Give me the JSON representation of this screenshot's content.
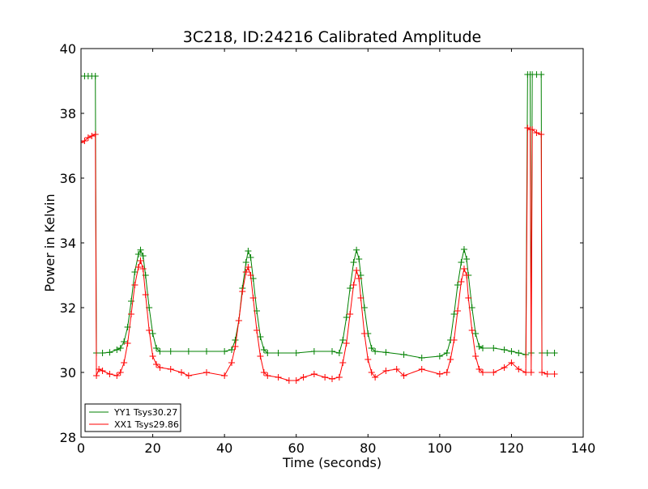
{
  "chart_data": {
    "type": "line",
    "title": "3C218, ID:24216 Calibrated Amplitude",
    "xlabel": "Time (seconds)",
    "ylabel": "Power in Kelvin",
    "xlim": [
      0,
      140
    ],
    "ylim": [
      28,
      40
    ],
    "xticks": [
      0,
      20,
      40,
      60,
      80,
      100,
      120,
      140
    ],
    "yticks": [
      28,
      30,
      32,
      34,
      36,
      38,
      40
    ],
    "xtick_labels": [
      "0",
      "20",
      "40",
      "60",
      "80",
      "100",
      "120",
      "140"
    ],
    "ytick_labels": [
      "28",
      "30",
      "32",
      "34",
      "36",
      "38",
      "40"
    ],
    "grid": false,
    "legend_position": "bottom-left",
    "marker": "+",
    "series": [
      {
        "name": "YY1 Tsys30.27",
        "color": "#008000",
        "points": [
          [
            0,
            39.15
          ],
          [
            1,
            39.15
          ],
          [
            2,
            39.15
          ],
          [
            3,
            39.15
          ],
          [
            4,
            39.15
          ],
          [
            4.3,
            30.6
          ],
          [
            6,
            30.6
          ],
          [
            8,
            30.62
          ],
          [
            10,
            30.7
          ],
          [
            11,
            30.75
          ],
          [
            12,
            30.95
          ],
          [
            13,
            31.4
          ],
          [
            14,
            32.2
          ],
          [
            15,
            33.1
          ],
          [
            16,
            33.65
          ],
          [
            16.6,
            33.78
          ],
          [
            17.3,
            33.6
          ],
          [
            18,
            33.0
          ],
          [
            19,
            32.0
          ],
          [
            20,
            31.2
          ],
          [
            21,
            30.75
          ],
          [
            22,
            30.65
          ],
          [
            25,
            30.65
          ],
          [
            30,
            30.65
          ],
          [
            35,
            30.65
          ],
          [
            40,
            30.65
          ],
          [
            42,
            30.7
          ],
          [
            43,
            31.0
          ],
          [
            44,
            31.6
          ],
          [
            45,
            32.6
          ],
          [
            46,
            33.4
          ],
          [
            46.6,
            33.75
          ],
          [
            47.3,
            33.55
          ],
          [
            48,
            32.9
          ],
          [
            49,
            31.9
          ],
          [
            50,
            31.1
          ],
          [
            51,
            30.7
          ],
          [
            52,
            30.6
          ],
          [
            55,
            30.6
          ],
          [
            60,
            30.6
          ],
          [
            65,
            30.65
          ],
          [
            70,
            30.65
          ],
          [
            72,
            30.6
          ],
          [
            73,
            31.0
          ],
          [
            74,
            31.7
          ],
          [
            75,
            32.6
          ],
          [
            76,
            33.4
          ],
          [
            76.8,
            33.78
          ],
          [
            77.5,
            33.5
          ],
          [
            78,
            33.0
          ],
          [
            79,
            32.0
          ],
          [
            80,
            31.2
          ],
          [
            81,
            30.75
          ],
          [
            82,
            30.65
          ],
          [
            85,
            30.62
          ],
          [
            90,
            30.55
          ],
          [
            95,
            30.45
          ],
          [
            100,
            30.5
          ],
          [
            102,
            30.6
          ],
          [
            103,
            31.0
          ],
          [
            104,
            31.8
          ],
          [
            105,
            32.7
          ],
          [
            106,
            33.4
          ],
          [
            106.8,
            33.8
          ],
          [
            107.5,
            33.5
          ],
          [
            108,
            33.0
          ],
          [
            109,
            32.0
          ],
          [
            110,
            31.2
          ],
          [
            111,
            30.8
          ],
          [
            112,
            30.75
          ],
          [
            115,
            30.75
          ],
          [
            118,
            30.7
          ],
          [
            120,
            30.65
          ],
          [
            122,
            30.6
          ],
          [
            124,
            30.55
          ],
          [
            124.5,
            39.2
          ],
          [
            125.2,
            39.2
          ],
          [
            125.5,
            30.6
          ],
          [
            125.8,
            39.2
          ],
          [
            127,
            39.2
          ],
          [
            128.3,
            39.2
          ],
          [
            128.5,
            30.6
          ],
          [
            130,
            30.6
          ],
          [
            132,
            30.6
          ]
        ]
      },
      {
        "name": "XX1 Tsys29.86",
        "color": "#ff0000",
        "points": [
          [
            0,
            37.1
          ],
          [
            1,
            37.15
          ],
          [
            2,
            37.25
          ],
          [
            3,
            37.3
          ],
          [
            4,
            37.35
          ],
          [
            4.3,
            29.9
          ],
          [
            5,
            30.1
          ],
          [
            6,
            30.05
          ],
          [
            8,
            29.95
          ],
          [
            10,
            29.9
          ],
          [
            11,
            30.0
          ],
          [
            12,
            30.3
          ],
          [
            13,
            30.9
          ],
          [
            14,
            31.8
          ],
          [
            15,
            32.7
          ],
          [
            16,
            33.25
          ],
          [
            16.6,
            33.45
          ],
          [
            17.3,
            33.2
          ],
          [
            18,
            32.4
          ],
          [
            19,
            31.3
          ],
          [
            20,
            30.5
          ],
          [
            21,
            30.25
          ],
          [
            22,
            30.15
          ],
          [
            25,
            30.1
          ],
          [
            28,
            30.0
          ],
          [
            30,
            29.9
          ],
          [
            35,
            30.0
          ],
          [
            40,
            29.9
          ],
          [
            42,
            30.3
          ],
          [
            43,
            30.8
          ],
          [
            44,
            31.6
          ],
          [
            45,
            32.5
          ],
          [
            46,
            33.1
          ],
          [
            46.6,
            33.25
          ],
          [
            47.3,
            33.0
          ],
          [
            48,
            32.3
          ],
          [
            49,
            31.3
          ],
          [
            50,
            30.5
          ],
          [
            51,
            30.0
          ],
          [
            52,
            29.9
          ],
          [
            55,
            29.85
          ],
          [
            58,
            29.75
          ],
          [
            60,
            29.75
          ],
          [
            62,
            29.85
          ],
          [
            65,
            29.95
          ],
          [
            68,
            29.85
          ],
          [
            70,
            29.8
          ],
          [
            72,
            29.85
          ],
          [
            73,
            30.3
          ],
          [
            74,
            30.9
          ],
          [
            75,
            31.8
          ],
          [
            76,
            32.7
          ],
          [
            76.8,
            33.15
          ],
          [
            77.5,
            32.9
          ],
          [
            78,
            32.3
          ],
          [
            79,
            31.2
          ],
          [
            80,
            30.4
          ],
          [
            81,
            30.0
          ],
          [
            82,
            29.85
          ],
          [
            85,
            30.05
          ],
          [
            88,
            30.1
          ],
          [
            90,
            29.9
          ],
          [
            95,
            30.1
          ],
          [
            100,
            29.95
          ],
          [
            102,
            30.0
          ],
          [
            103,
            30.4
          ],
          [
            104,
            31.0
          ],
          [
            105,
            31.9
          ],
          [
            106,
            32.8
          ],
          [
            106.8,
            33.2
          ],
          [
            107.5,
            33.0
          ],
          [
            108,
            32.3
          ],
          [
            109,
            31.3
          ],
          [
            110,
            30.5
          ],
          [
            111,
            30.1
          ],
          [
            112,
            30.0
          ],
          [
            115,
            30.0
          ],
          [
            118,
            30.15
          ],
          [
            120,
            30.3
          ],
          [
            122,
            30.1
          ],
          [
            124,
            30.0
          ],
          [
            124.5,
            37.55
          ],
          [
            125.2,
            37.5
          ],
          [
            125.5,
            30.0
          ],
          [
            125.8,
            37.5
          ],
          [
            127,
            37.4
          ],
          [
            128.3,
            37.35
          ],
          [
            128.5,
            30.0
          ],
          [
            130,
            29.95
          ],
          [
            132,
            29.95
          ]
        ]
      }
    ]
  }
}
